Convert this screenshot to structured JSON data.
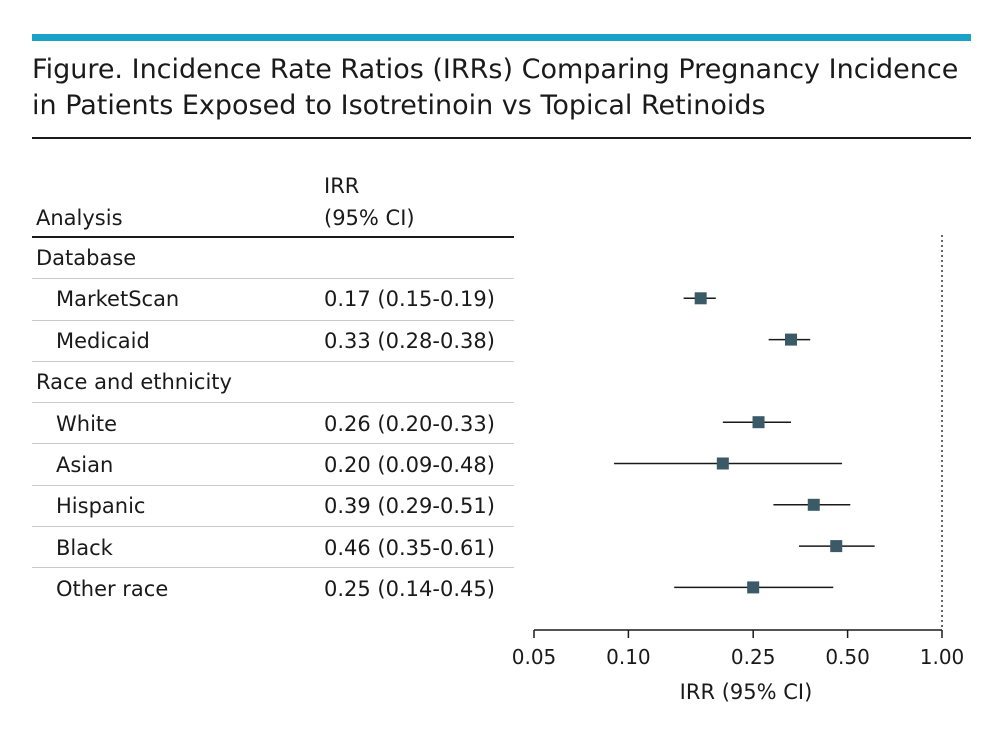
{
  "title": "Figure. Incidence Rate Ratios (IRRs) Comparing Pregnancy Incidence in Patients Exposed to Isotretinoin vs Topical Retinoids",
  "title_line1": "Figure. Incidence Rate Ratios (IRRs) Comparing Pregnancy Incidence",
  "title_line2": "in Patients Exposed to Isotretinoin vs Topical Retinoids",
  "colors": {
    "accent": "#1aa3c8",
    "marker": "#3a5a68",
    "text": "#1a1a1a"
  },
  "chart_data": {
    "type": "forest",
    "column_headers": {
      "analysis": "Analysis",
      "irr_line1": "IRR",
      "irr_line2": "(95% CI)"
    },
    "xlabel": "IRR (95% CI)",
    "xscale": "log",
    "xlim": [
      0.05,
      1.0
    ],
    "ticks": [
      0.05,
      0.1,
      0.25,
      0.5,
      1.0
    ],
    "tick_labels": [
      "0.05",
      "0.10",
      "0.25",
      "0.50",
      "1.00"
    ],
    "reference_line": 1.0,
    "rows": [
      {
        "kind": "group",
        "label": "Database"
      },
      {
        "kind": "item",
        "label": "MarketScan",
        "text": "0.17 (0.15-0.19)",
        "irr": 0.17,
        "lo": 0.15,
        "hi": 0.19
      },
      {
        "kind": "item",
        "label": "Medicaid",
        "text": "0.33 (0.28-0.38)",
        "irr": 0.33,
        "lo": 0.28,
        "hi": 0.38
      },
      {
        "kind": "group",
        "label": "Race and ethnicity"
      },
      {
        "kind": "item",
        "label": "White",
        "text": "0.26 (0.20-0.33)",
        "irr": 0.26,
        "lo": 0.2,
        "hi": 0.33
      },
      {
        "kind": "item",
        "label": "Asian",
        "text": "0.20 (0.09-0.48)",
        "irr": 0.2,
        "lo": 0.09,
        "hi": 0.48
      },
      {
        "kind": "item",
        "label": "Hispanic",
        "text": "0.39 (0.29-0.51)",
        "irr": 0.39,
        "lo": 0.29,
        "hi": 0.51
      },
      {
        "kind": "item",
        "label": "Black",
        "text": "0.46 (0.35-0.61)",
        "irr": 0.46,
        "lo": 0.35,
        "hi": 0.61
      },
      {
        "kind": "item",
        "label": "Other race",
        "text": "0.25 (0.14-0.45)",
        "irr": 0.25,
        "lo": 0.14,
        "hi": 0.45
      }
    ]
  }
}
